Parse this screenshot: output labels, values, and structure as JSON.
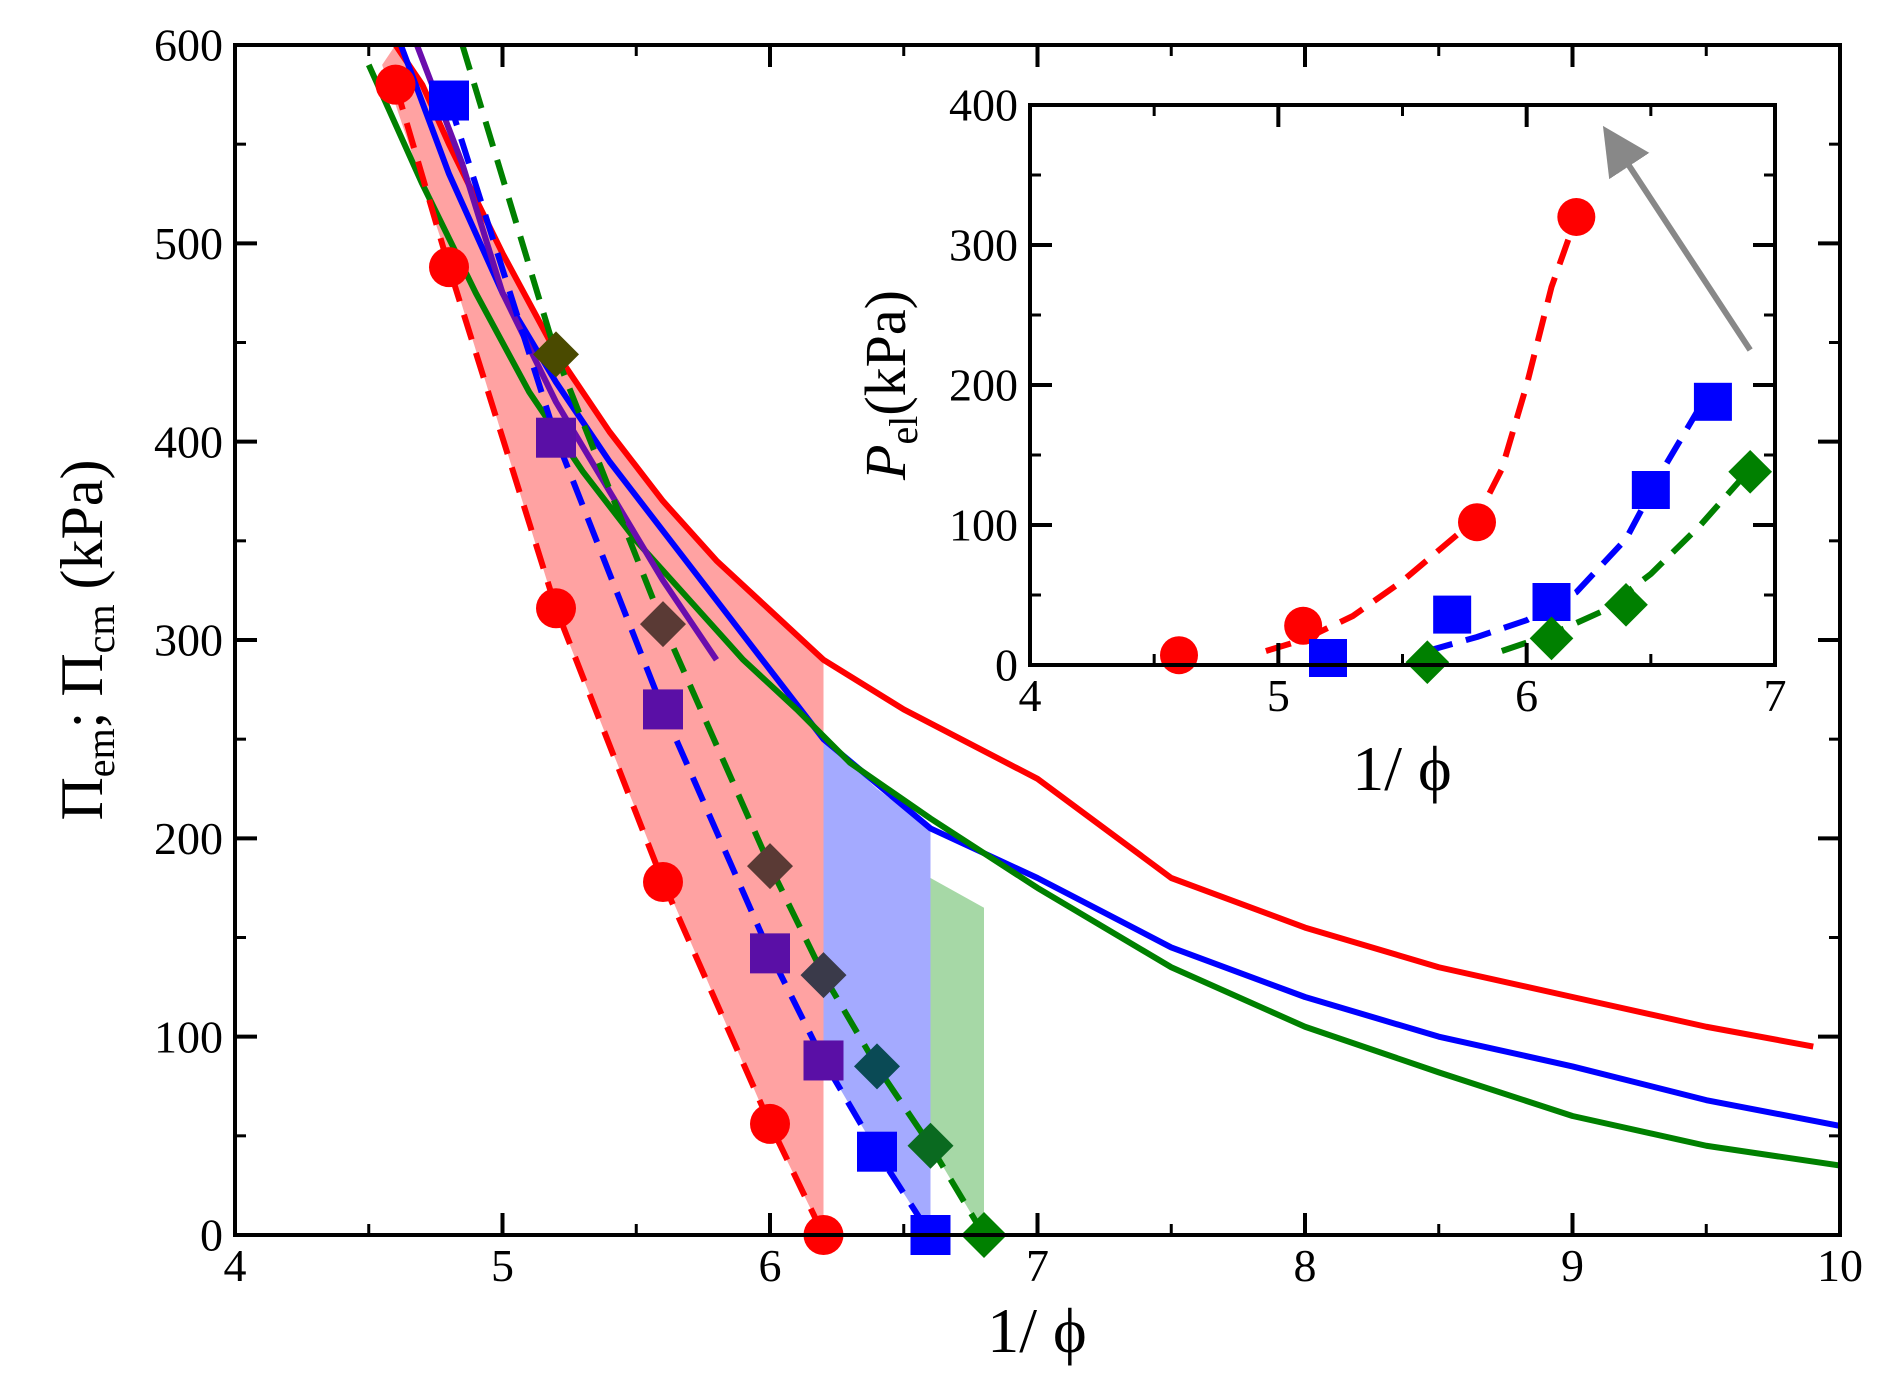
{
  "chart_data": [
    {
      "type": "line",
      "role": "main",
      "xlabel": "1/ ϕ",
      "ylabel": {
        "main": "Π",
        "sub1": "em",
        "sep": "; Π",
        "sub2": "cm",
        "tail": " (kPa)"
      },
      "xlim": [
        4,
        10
      ],
      "ylim": [
        0,
        600
      ],
      "xticks": [
        4,
        5,
        6,
        7,
        8,
        9,
        10
      ],
      "yticks": [
        0,
        100,
        200,
        300,
        400,
        500,
        600
      ],
      "xtick_labels": [
        "4",
        "5",
        "6",
        "7",
        "8",
        "9",
        "10"
      ],
      "ytick_labels": [
        "0",
        "100",
        "200",
        "300",
        "400",
        "500",
        "600"
      ],
      "bands": [
        {
          "name": "red-region",
          "color": "#ff3030",
          "opacity": 0.45,
          "upper_x": [
            4.6,
            4.7,
            4.8,
            5.0,
            5.2,
            5.4,
            5.6,
            5.8,
            6.0,
            6.2
          ],
          "upper_y": [
            600,
            580,
            550,
            495,
            445,
            405,
            370,
            340,
            315,
            290
          ],
          "lower_x": [
            4.55,
            4.8,
            5.2,
            5.6,
            6.0,
            6.2
          ],
          "lower_y": [
            590,
            490,
            315,
            180,
            55,
            0
          ]
        },
        {
          "name": "blue-region",
          "color": "#4a55ff",
          "opacity": 0.5,
          "upper_x": [
            6.2,
            6.4,
            6.6
          ],
          "upper_y": [
            250,
            225,
            205
          ],
          "lower_x": [
            6.2,
            6.4,
            6.6
          ],
          "lower_y": [
            88,
            42,
            0
          ]
        },
        {
          "name": "green-region",
          "color": "#3aa83a",
          "opacity": 0.45,
          "upper_x": [
            6.6,
            6.8
          ],
          "upper_y": [
            180,
            165
          ],
          "lower_x": [
            6.6,
            6.8
          ],
          "lower_y": [
            45,
            0
          ]
        }
      ],
      "series": [
        {
          "name": "red-solid",
          "color": "#ff0000",
          "style": "solid",
          "x": [
            4.6,
            4.7,
            4.8,
            5.0,
            5.2,
            5.4,
            5.6,
            5.8,
            6.0,
            6.2,
            6.5,
            7.0,
            7.5,
            8.0,
            8.5,
            9.0,
            9.5,
            9.9
          ],
          "y": [
            600,
            580,
            550,
            495,
            445,
            405,
            370,
            340,
            315,
            290,
            265,
            230,
            180,
            155,
            135,
            120,
            105,
            95
          ]
        },
        {
          "name": "blue-solid",
          "color": "#0000ff",
          "style": "solid",
          "x": [
            4.62,
            4.8,
            5.0,
            5.2,
            5.4,
            5.6,
            5.8,
            6.0,
            6.2,
            6.6,
            7.0,
            7.5,
            8.0,
            8.5,
            9.0,
            9.5,
            10.0
          ],
          "y": [
            600,
            535,
            475,
            430,
            390,
            355,
            320,
            285,
            250,
            205,
            180,
            145,
            120,
            100,
            85,
            68,
            55
          ]
        },
        {
          "name": "green-solid",
          "color": "#008000",
          "style": "solid",
          "x": [
            4.5,
            4.7,
            4.9,
            5.1,
            5.3,
            5.5,
            5.7,
            5.9,
            6.1,
            6.3,
            6.6,
            7.0,
            7.5,
            8.0,
            8.5,
            9.0,
            9.5,
            10.0
          ],
          "y": [
            590,
            530,
            475,
            425,
            385,
            350,
            320,
            290,
            265,
            238,
            210,
            175,
            135,
            105,
            82,
            60,
            45,
            35
          ]
        },
        {
          "name": "purple-solid",
          "color": "#6a0dad",
          "style": "solid",
          "x": [
            4.68,
            4.85,
            5.0,
            5.2,
            5.4,
            5.6,
            5.8
          ],
          "y": [
            600,
            540,
            475,
            420,
            375,
            330,
            290
          ]
        },
        {
          "name": "red-dashed",
          "color": "#ff0000",
          "style": "dashed",
          "marker": "circle",
          "x": [
            4.6,
            4.8,
            5.2,
            5.6,
            6.0,
            6.2
          ],
          "y": [
            580,
            488,
            316,
            178,
            56,
            0
          ]
        },
        {
          "name": "blue-dashed",
          "color": "#0000ff",
          "style": "dashed",
          "marker": "square",
          "x": [
            4.8,
            5.2,
            5.6,
            6.0,
            6.2,
            6.4,
            6.6
          ],
          "y": [
            572,
            402,
            265,
            142,
            88,
            42,
            0
          ]
        },
        {
          "name": "green-dashed",
          "color": "#008000",
          "style": "dashed",
          "marker": "diamond",
          "x": [
            4.85,
            5.2,
            5.6,
            6.0,
            6.2,
            6.4,
            6.6,
            6.8
          ],
          "y": [
            600,
            444,
            308,
            186,
            131,
            85,
            45,
            0
          ]
        }
      ],
      "marker_colors": {
        "blue-dashed": [
          "#0000ff",
          "#5a0fa6",
          "#5a0fa6",
          "#5a0fa6",
          "#5a0fa6",
          "#0000ff",
          "#0000ff"
        ],
        "green-dashed": [
          "#008000",
          "#4a4a00",
          "#5a3a35",
          "#5a3a35",
          "#3a3a4a",
          "#0a4a55",
          "#0a6a20",
          "#008000"
        ]
      }
    },
    {
      "type": "line",
      "role": "inset",
      "xlabel": "1/ ϕ",
      "ylabel": {
        "main": "P",
        "sub": "el",
        "tail": "(kPa)"
      },
      "xlim": [
        4,
        7
      ],
      "ylim": [
        0,
        400
      ],
      "xticks": [
        4,
        5,
        6,
        7
      ],
      "yticks": [
        0,
        100,
        200,
        300,
        400
      ],
      "xtick_labels": [
        "4",
        "5",
        "6",
        "7"
      ],
      "ytick_labels": [
        "0",
        "100",
        "200",
        "300",
        "400"
      ],
      "arrow": {
        "from": [
          6.9,
          225
        ],
        "to": [
          6.4,
          360
        ],
        "color": "#888888"
      },
      "series": [
        {
          "name": "red",
          "color": "#ff0000",
          "marker": "circle",
          "x": [
            4.6,
            5.1,
            5.8,
            6.2
          ],
          "y": [
            7,
            28,
            102,
            320
          ],
          "fit_x": [
            4.95,
            5.1,
            5.3,
            5.5,
            5.7,
            5.8,
            5.9,
            6.0,
            6.1,
            6.2
          ],
          "fit_y": [
            10,
            18,
            35,
            60,
            90,
            105,
            140,
            200,
            270,
            320
          ]
        },
        {
          "name": "blue",
          "color": "#0000ff",
          "marker": "square",
          "x": [
            5.2,
            5.7,
            6.1,
            6.5,
            6.75
          ],
          "y": [
            5,
            36,
            45,
            125,
            188
          ],
          "fit_x": [
            5.6,
            5.8,
            6.0,
            6.2,
            6.4,
            6.55,
            6.7
          ],
          "fit_y": [
            10,
            20,
            32,
            52,
            90,
            140,
            185
          ]
        },
        {
          "name": "green",
          "color": "#008000",
          "marker": "diamond",
          "x": [
            5.6,
            6.1,
            6.4,
            6.9
          ],
          "y": [
            2,
            19,
            43,
            138
          ],
          "fit_x": [
            5.9,
            6.1,
            6.3,
            6.5,
            6.7,
            6.9
          ],
          "fit_y": [
            10,
            22,
            38,
            65,
            100,
            140
          ]
        }
      ]
    }
  ]
}
